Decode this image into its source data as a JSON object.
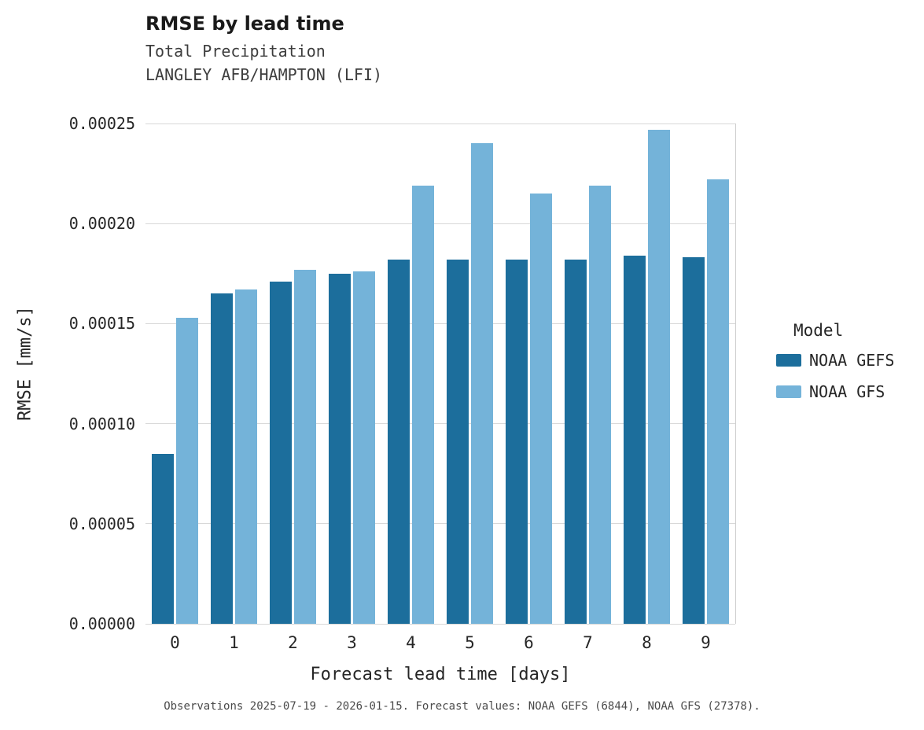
{
  "header": {
    "title": "RMSE by lead time",
    "subtitle1": "Total Precipitation",
    "subtitle2": "LANGLEY AFB/HAMPTON (LFI)"
  },
  "legend": {
    "title": "Model",
    "entries": [
      {
        "label": "NOAA GEFS",
        "color": "#1c6e9c"
      },
      {
        "label": "NOAA GFS",
        "color": "#74b3d9"
      }
    ]
  },
  "caption": "Observations 2025-07-19 - 2026-01-15. Forecast values: NOAA GEFS (6844), NOAA GFS (27378).",
  "colors": {
    "gridline": "#d8d8d8",
    "axis_text": "#262626"
  },
  "chart_data": {
    "type": "bar",
    "title": "RMSE by lead time",
    "subtitle": "Total Precipitation — LANGLEY AFB/HAMPTON (LFI)",
    "xlabel": "Forecast lead time [days]",
    "ylabel": "RMSE [mm/s]",
    "categories": [
      "0",
      "1",
      "2",
      "3",
      "4",
      "5",
      "6",
      "7",
      "8",
      "9"
    ],
    "series": [
      {
        "name": "NOAA GEFS",
        "color": "#1c6e9c",
        "values": [
          8.5e-05,
          0.000165,
          0.000171,
          0.000175,
          0.000182,
          0.000182,
          0.000182,
          0.000182,
          0.000184,
          0.000183
        ]
      },
      {
        "name": "NOAA GFS",
        "color": "#74b3d9",
        "values": [
          0.000153,
          0.000167,
          0.000177,
          0.000176,
          0.000219,
          0.00024,
          0.000215,
          0.000219,
          0.000247,
          0.000222
        ]
      }
    ],
    "ylim": [
      0,
      0.00025
    ],
    "yticks": [
      0,
      5e-05,
      0.0001,
      0.00015,
      0.0002,
      0.00025
    ],
    "ytick_labels": [
      "0.00000",
      "0.00005",
      "0.00010",
      "0.00015",
      "0.00020",
      "0.00025"
    ],
    "grid": "horizontal",
    "legend_position": "right"
  }
}
